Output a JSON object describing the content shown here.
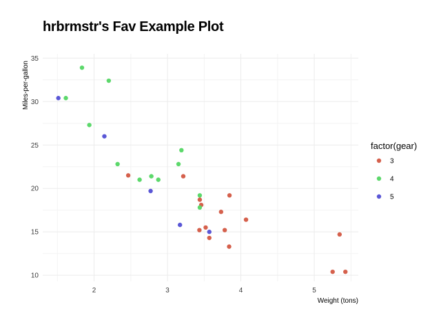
{
  "chart_data": {
    "type": "scatter",
    "title": "hrbrmstr's Fav Example Plot",
    "xlabel": "Weight (tons)",
    "ylabel": "Miles-per-gallon",
    "xlim": [
      1.3,
      5.6
    ],
    "ylim": [
      9.3,
      35.5
    ],
    "xticks": [
      2,
      3,
      4,
      5
    ],
    "yticks": [
      10,
      15,
      20,
      25,
      30,
      35
    ],
    "grid": true,
    "legend": {
      "title": "factor(gear)",
      "position": "right"
    },
    "series": [
      {
        "name": "3",
        "color": "#D5604C",
        "points": [
          [
            2.465,
            21.5
          ],
          [
            3.215,
            21.4
          ],
          [
            3.44,
            18.7
          ],
          [
            3.46,
            18.1
          ],
          [
            3.57,
            14.3
          ],
          [
            4.07,
            16.4
          ],
          [
            3.73,
            17.3
          ],
          [
            3.78,
            15.2
          ],
          [
            5.25,
            10.4
          ],
          [
            5.424,
            10.4
          ],
          [
            5.345,
            14.7
          ],
          [
            3.52,
            15.5
          ],
          [
            3.435,
            15.2
          ],
          [
            3.84,
            13.3
          ],
          [
            3.845,
            19.2
          ]
        ]
      },
      {
        "name": "4",
        "color": "#5CD86B",
        "points": [
          [
            2.62,
            21.0
          ],
          [
            2.875,
            21.0
          ],
          [
            2.32,
            22.8
          ],
          [
            3.19,
            24.4
          ],
          [
            3.15,
            22.8
          ],
          [
            3.44,
            19.2
          ],
          [
            3.44,
            17.8
          ],
          [
            2.2,
            32.4
          ],
          [
            1.615,
            30.4
          ],
          [
            1.835,
            33.9
          ],
          [
            1.935,
            27.3
          ],
          [
            2.78,
            21.4
          ]
        ]
      },
      {
        "name": "5",
        "color": "#5A57D6",
        "points": [
          [
            2.14,
            26.0
          ],
          [
            1.513,
            30.4
          ],
          [
            3.17,
            15.8
          ],
          [
            2.77,
            19.7
          ],
          [
            3.57,
            15.0
          ]
        ]
      }
    ]
  }
}
